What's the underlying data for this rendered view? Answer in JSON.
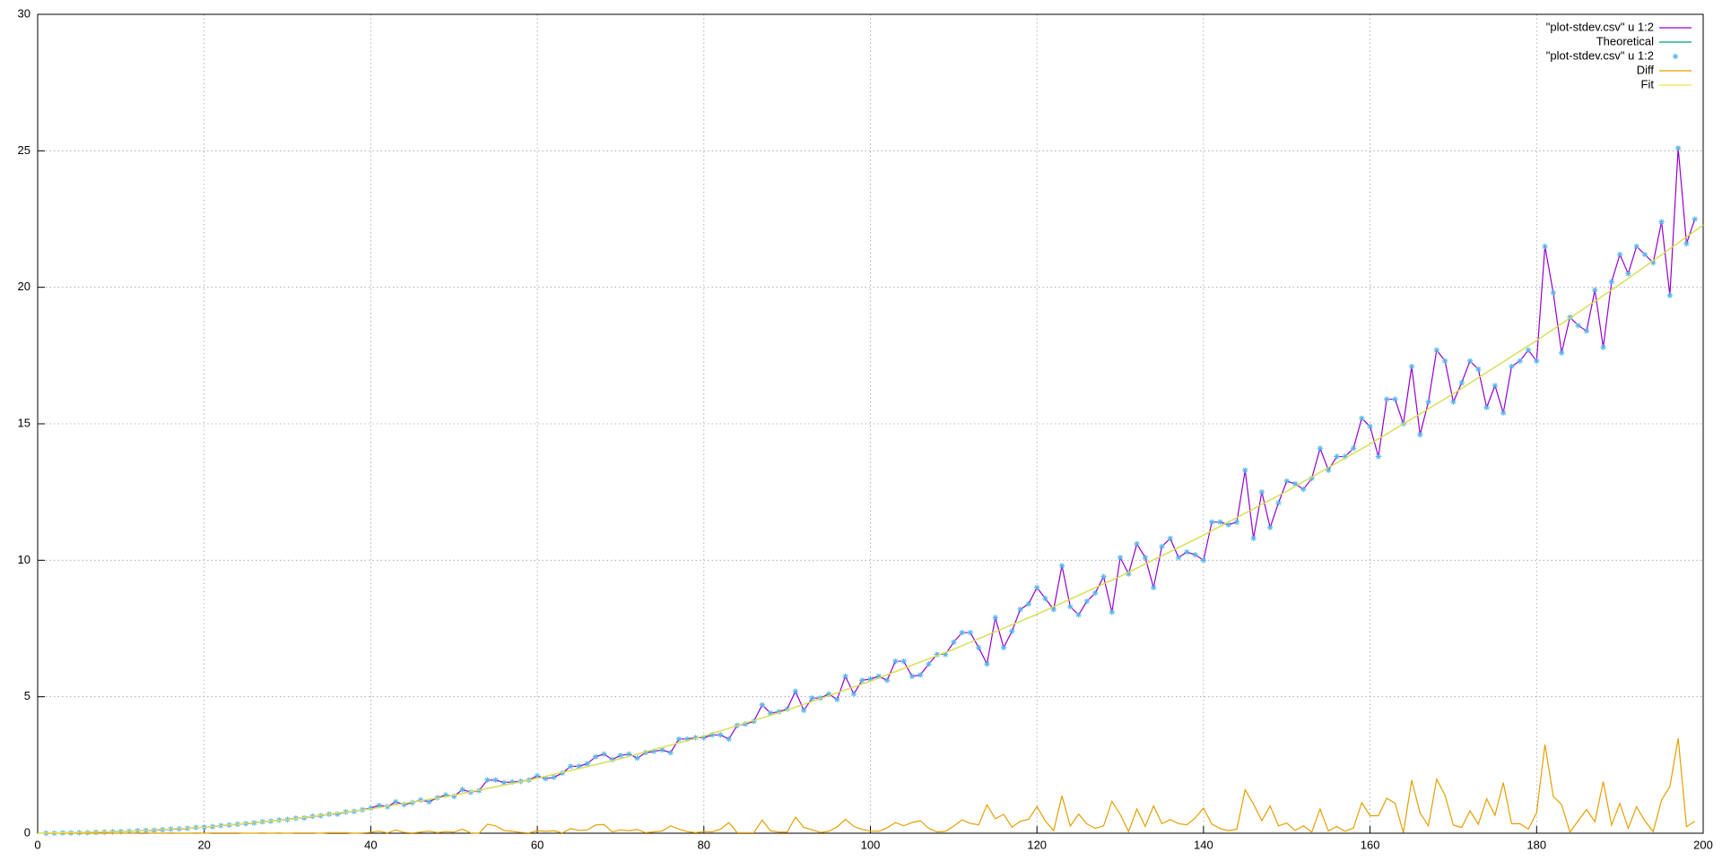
{
  "chart_data": {
    "type": "line",
    "xlim": [
      0,
      200
    ],
    "ylim": [
      0,
      30
    ],
    "xticks": [
      0,
      20,
      40,
      60,
      80,
      100,
      120,
      140,
      160,
      180,
      200
    ],
    "yticks": [
      0,
      5,
      10,
      15,
      20,
      25,
      30
    ],
    "grid": true,
    "legend": "top-right",
    "x": [
      1,
      2,
      3,
      4,
      5,
      6,
      7,
      8,
      9,
      10,
      11,
      12,
      13,
      14,
      15,
      16,
      17,
      18,
      19,
      20,
      21,
      22,
      23,
      24,
      25,
      26,
      27,
      28,
      29,
      30,
      31,
      32,
      33,
      34,
      35,
      36,
      37,
      38,
      39,
      40,
      41,
      42,
      43,
      44,
      45,
      46,
      47,
      48,
      49,
      50,
      51,
      52,
      53,
      54,
      55,
      56,
      57,
      58,
      59,
      60,
      61,
      62,
      63,
      64,
      65,
      66,
      67,
      68,
      69,
      70,
      71,
      72,
      73,
      74,
      75,
      76,
      77,
      78,
      79,
      80,
      81,
      82,
      83,
      84,
      85,
      86,
      87,
      88,
      89,
      90,
      91,
      92,
      93,
      94,
      95,
      96,
      97,
      98,
      99,
      100,
      101,
      102,
      103,
      104,
      105,
      106,
      107,
      108,
      109,
      110,
      111,
      112,
      113,
      114,
      115,
      116,
      117,
      118,
      119,
      120,
      121,
      122,
      123,
      124,
      125,
      126,
      127,
      128,
      129,
      130,
      131,
      132,
      133,
      134,
      135,
      136,
      137,
      138,
      139,
      140,
      141,
      142,
      143,
      144,
      145,
      146,
      147,
      148,
      149,
      150,
      151,
      152,
      153,
      154,
      155,
      156,
      157,
      158,
      159,
      160,
      161,
      162,
      163,
      164,
      165,
      166,
      167,
      168,
      169,
      170,
      171,
      172,
      173,
      174,
      175,
      176,
      177,
      178,
      179,
      180,
      181,
      182,
      183,
      184,
      185,
      186,
      187,
      188,
      189,
      190,
      191,
      192,
      193,
      194,
      195,
      196,
      197,
      198,
      199
    ],
    "series": [
      {
        "name": "\"plot-stdev.csv\"  u 1:2",
        "style": "lines",
        "color": "#9400d3",
        "values": [
          0,
          0,
          0.01,
          0.01,
          0.02,
          0.02,
          0.03,
          0.04,
          0.05,
          0.06,
          0.07,
          0.09,
          0.1,
          0.11,
          0.13,
          0.15,
          0.16,
          0.18,
          0.21,
          0.22,
          0.24,
          0.28,
          0.3,
          0.33,
          0.35,
          0.38,
          0.42,
          0.44,
          0.48,
          0.5,
          0.55,
          0.56,
          0.62,
          0.64,
          0.7,
          0.7,
          0.78,
          0.8,
          0.86,
          0.92,
          1.02,
          0.97,
          1.15,
          1.05,
          1.12,
          1.22,
          1.15,
          1.3,
          1.4,
          1.35,
          1.6,
          1.5,
          1.56,
          1.95,
          1.95,
          1.85,
          1.88,
          1.9,
          1.95,
          2.1,
          2.0,
          2.05,
          2.2,
          2.45,
          2.45,
          2.55,
          2.8,
          2.9,
          2.7,
          2.85,
          2.9,
          2.75,
          2.95,
          3.0,
          3.05,
          2.95,
          3.45,
          3.45,
          3.5,
          3.5,
          3.6,
          3.6,
          3.45,
          3.95,
          4.0,
          4.1,
          4.7,
          4.4,
          4.45,
          4.55,
          5.2,
          4.5,
          4.95,
          4.95,
          5.1,
          4.9,
          5.75,
          5.1,
          5.6,
          5.65,
          5.75,
          5.6,
          6.3,
          6.3,
          5.75,
          5.8,
          6.2,
          6.55,
          6.55,
          7.0,
          7.35,
          7.35,
          6.8,
          6.2,
          7.9,
          6.8,
          7.4,
          8.2,
          8.4,
          9.0,
          8.6,
          8.2,
          9.8,
          8.3,
          8.0,
          8.5,
          8.8,
          9.4,
          8.1,
          10.1,
          9.5,
          10.6,
          10.1,
          9.0,
          10.5,
          10.8,
          10.1,
          10.3,
          10.2,
          10.0,
          11.4,
          11.4,
          11.3,
          11.4,
          13.3,
          10.8,
          12.5,
          11.2,
          12.1,
          12.9,
          12.8,
          12.6,
          13.0,
          14.1,
          13.3,
          13.8,
          13.8,
          14.1,
          15.2,
          14.9,
          13.8,
          15.9,
          15.9,
          15.0,
          17.1,
          14.6,
          15.8,
          17.7,
          17.3,
          15.8,
          16.5,
          17.3,
          17.0,
          15.6,
          16.4,
          15.4,
          17.1,
          17.3,
          17.7,
          17.3,
          21.5,
          19.8,
          17.6,
          18.9,
          18.6,
          18.4,
          19.9,
          17.8,
          20.2,
          21.2,
          20.5,
          21.5,
          21.2,
          20.9,
          22.4,
          19.7,
          25.1,
          21.6,
          22.5
        ]
      },
      {
        "name": "Theoretical",
        "style": "lines",
        "color": "#009e73",
        "x": [
          0,
          10,
          20,
          30,
          40,
          50,
          60,
          70,
          80,
          90,
          100,
          110,
          120,
          130,
          140,
          150,
          160,
          170,
          180,
          190,
          200
        ],
        "values": [
          0,
          0.06,
          0.22,
          0.5,
          0.89,
          1.39,
          2.01,
          2.73,
          3.56,
          4.51,
          5.57,
          6.74,
          8.02,
          9.41,
          10.92,
          12.53,
          14.26,
          16.1,
          18.05,
          20.11,
          22.28
        ]
      },
      {
        "name": "\"plot-stdev.csv\" u 1:2",
        "style": "points",
        "color": "#56b4e9",
        "values": [
          0,
          0,
          0.01,
          0.01,
          0.02,
          0.02,
          0.03,
          0.04,
          0.05,
          0.06,
          0.07,
          0.09,
          0.1,
          0.11,
          0.13,
          0.15,
          0.16,
          0.18,
          0.21,
          0.22,
          0.24,
          0.28,
          0.3,
          0.33,
          0.35,
          0.38,
          0.42,
          0.44,
          0.48,
          0.5,
          0.55,
          0.56,
          0.62,
          0.64,
          0.7,
          0.7,
          0.78,
          0.8,
          0.86,
          0.92,
          1.02,
          0.97,
          1.15,
          1.05,
          1.12,
          1.22,
          1.15,
          1.3,
          1.4,
          1.35,
          1.6,
          1.5,
          1.56,
          1.95,
          1.95,
          1.85,
          1.88,
          1.9,
          1.95,
          2.1,
          2.0,
          2.05,
          2.2,
          2.45,
          2.45,
          2.55,
          2.8,
          2.9,
          2.7,
          2.85,
          2.9,
          2.75,
          2.95,
          3.0,
          3.05,
          2.95,
          3.45,
          3.45,
          3.5,
          3.5,
          3.6,
          3.6,
          3.45,
          3.95,
          4.0,
          4.1,
          4.7,
          4.4,
          4.45,
          4.55,
          5.2,
          4.5,
          4.95,
          4.95,
          5.1,
          4.9,
          5.75,
          5.1,
          5.6,
          5.65,
          5.75,
          5.6,
          6.3,
          6.3,
          5.75,
          5.8,
          6.2,
          6.55,
          6.55,
          7.0,
          7.35,
          7.35,
          6.8,
          6.2,
          7.9,
          6.8,
          7.4,
          8.2,
          8.4,
          9.0,
          8.6,
          8.2,
          9.8,
          8.3,
          8.0,
          8.5,
          8.8,
          9.4,
          8.1,
          10.1,
          9.5,
          10.6,
          10.1,
          9.0,
          10.5,
          10.8,
          10.1,
          10.3,
          10.2,
          10.0,
          11.4,
          11.4,
          11.3,
          11.4,
          13.3,
          10.8,
          12.5,
          11.2,
          12.1,
          12.9,
          12.8,
          12.6,
          13.0,
          14.1,
          13.3,
          13.8,
          13.8,
          14.1,
          15.2,
          14.9,
          13.8,
          15.9,
          15.9,
          15.0,
          17.1,
          14.6,
          15.8,
          17.7,
          17.3,
          15.8,
          16.5,
          17.3,
          17.0,
          15.6,
          16.4,
          15.4,
          17.1,
          17.3,
          17.7,
          17.3,
          21.5,
          19.8,
          17.6,
          18.9,
          18.6,
          18.4,
          19.9,
          17.8,
          20.2,
          21.2,
          20.5,
          21.5,
          21.2,
          20.9,
          22.4,
          19.7,
          25.1,
          21.6,
          22.5
        ]
      },
      {
        "name": "Diff",
        "style": "lines",
        "color": "#e69f00",
        "values": [
          0,
          0,
          0,
          0,
          0.01,
          0,
          0,
          0,
          0,
          0,
          0,
          0.01,
          0.01,
          0,
          0,
          0.01,
          0,
          0,
          0.01,
          0,
          0.01,
          0.01,
          0.01,
          0.01,
          0,
          0,
          0.01,
          0,
          0.01,
          0,
          0.01,
          0.01,
          0.01,
          0,
          0.02,
          0.02,
          0.02,
          0,
          0.01,
          0.03,
          0.08,
          0.01,
          0.12,
          0.03,
          0.01,
          0.04,
          0.08,
          0.02,
          0.06,
          0.04,
          0.15,
          0.01,
          0,
          0.33,
          0.27,
          0.1,
          0.07,
          0.03,
          0.01,
          0.09,
          0.07,
          0.09,
          0.01,
          0.17,
          0.1,
          0.12,
          0.3,
          0.32,
          0.05,
          0.12,
          0.09,
          0.14,
          0.02,
          0.05,
          0.08,
          0.27,
          0.15,
          0.06,
          0.02,
          0.06,
          0.05,
          0.15,
          0.39,
          0.02,
          0.02,
          0.02,
          0.48,
          0.09,
          0.04,
          0.04,
          0.59,
          0.21,
          0.13,
          0.03,
          0.07,
          0.23,
          0.51,
          0.25,
          0.14,
          0.08,
          0.07,
          0.2,
          0.39,
          0.27,
          0.39,
          0.46,
          0.18,
          0.05,
          0.07,
          0.26,
          0.49,
          0.36,
          0.31,
          1.04,
          0.53,
          0.69,
          0.22,
          0.44,
          0.51,
          0.98,
          0.45,
          0.09,
          1.37,
          0.26,
          0.7,
          0.34,
          0.18,
          0.27,
          1.17,
          0.69,
          0.06,
          0.89,
          0.25,
          1.0,
          0.35,
          0.5,
          0.35,
          0.31,
          0.56,
          0.92,
          0.33,
          0.17,
          0.09,
          0.15,
          1.59,
          1.07,
          0.46,
          1.0,
          0.27,
          0.37,
          0.1,
          0.27,
          0.04,
          0.89,
          0.08,
          0.25,
          0.07,
          0.19,
          1.12,
          0.64,
          0.64,
          1.28,
          1.1,
          0.02,
          1.94,
          0.75,
          0.27,
          1.98,
          1.39,
          0.3,
          0.21,
          0.82,
          0.33,
          1.26,
          0.66,
          1.85,
          0.35,
          0.35,
          0.15,
          0.75,
          3.25,
          1.35,
          1.05,
          0.04,
          0.46,
          0.87,
          0.42,
          1.89,
          0.3,
          1.09,
          0.18,
          0.97,
          0.45,
          0.06,
          1.22,
          1.7,
          3.48,
          0.24,
          0.44
        ]
      },
      {
        "name": "Fit",
        "style": "lines",
        "color": "#f0e442",
        "x": [
          0,
          10,
          20,
          30,
          40,
          50,
          60,
          70,
          80,
          90,
          100,
          110,
          120,
          130,
          140,
          150,
          160,
          170,
          180,
          190,
          200
        ],
        "values": [
          0,
          0.06,
          0.22,
          0.5,
          0.89,
          1.39,
          2.01,
          2.73,
          3.56,
          4.51,
          5.57,
          6.74,
          8.02,
          9.41,
          10.92,
          12.53,
          14.26,
          16.1,
          18.05,
          20.11,
          22.28
        ]
      }
    ]
  }
}
